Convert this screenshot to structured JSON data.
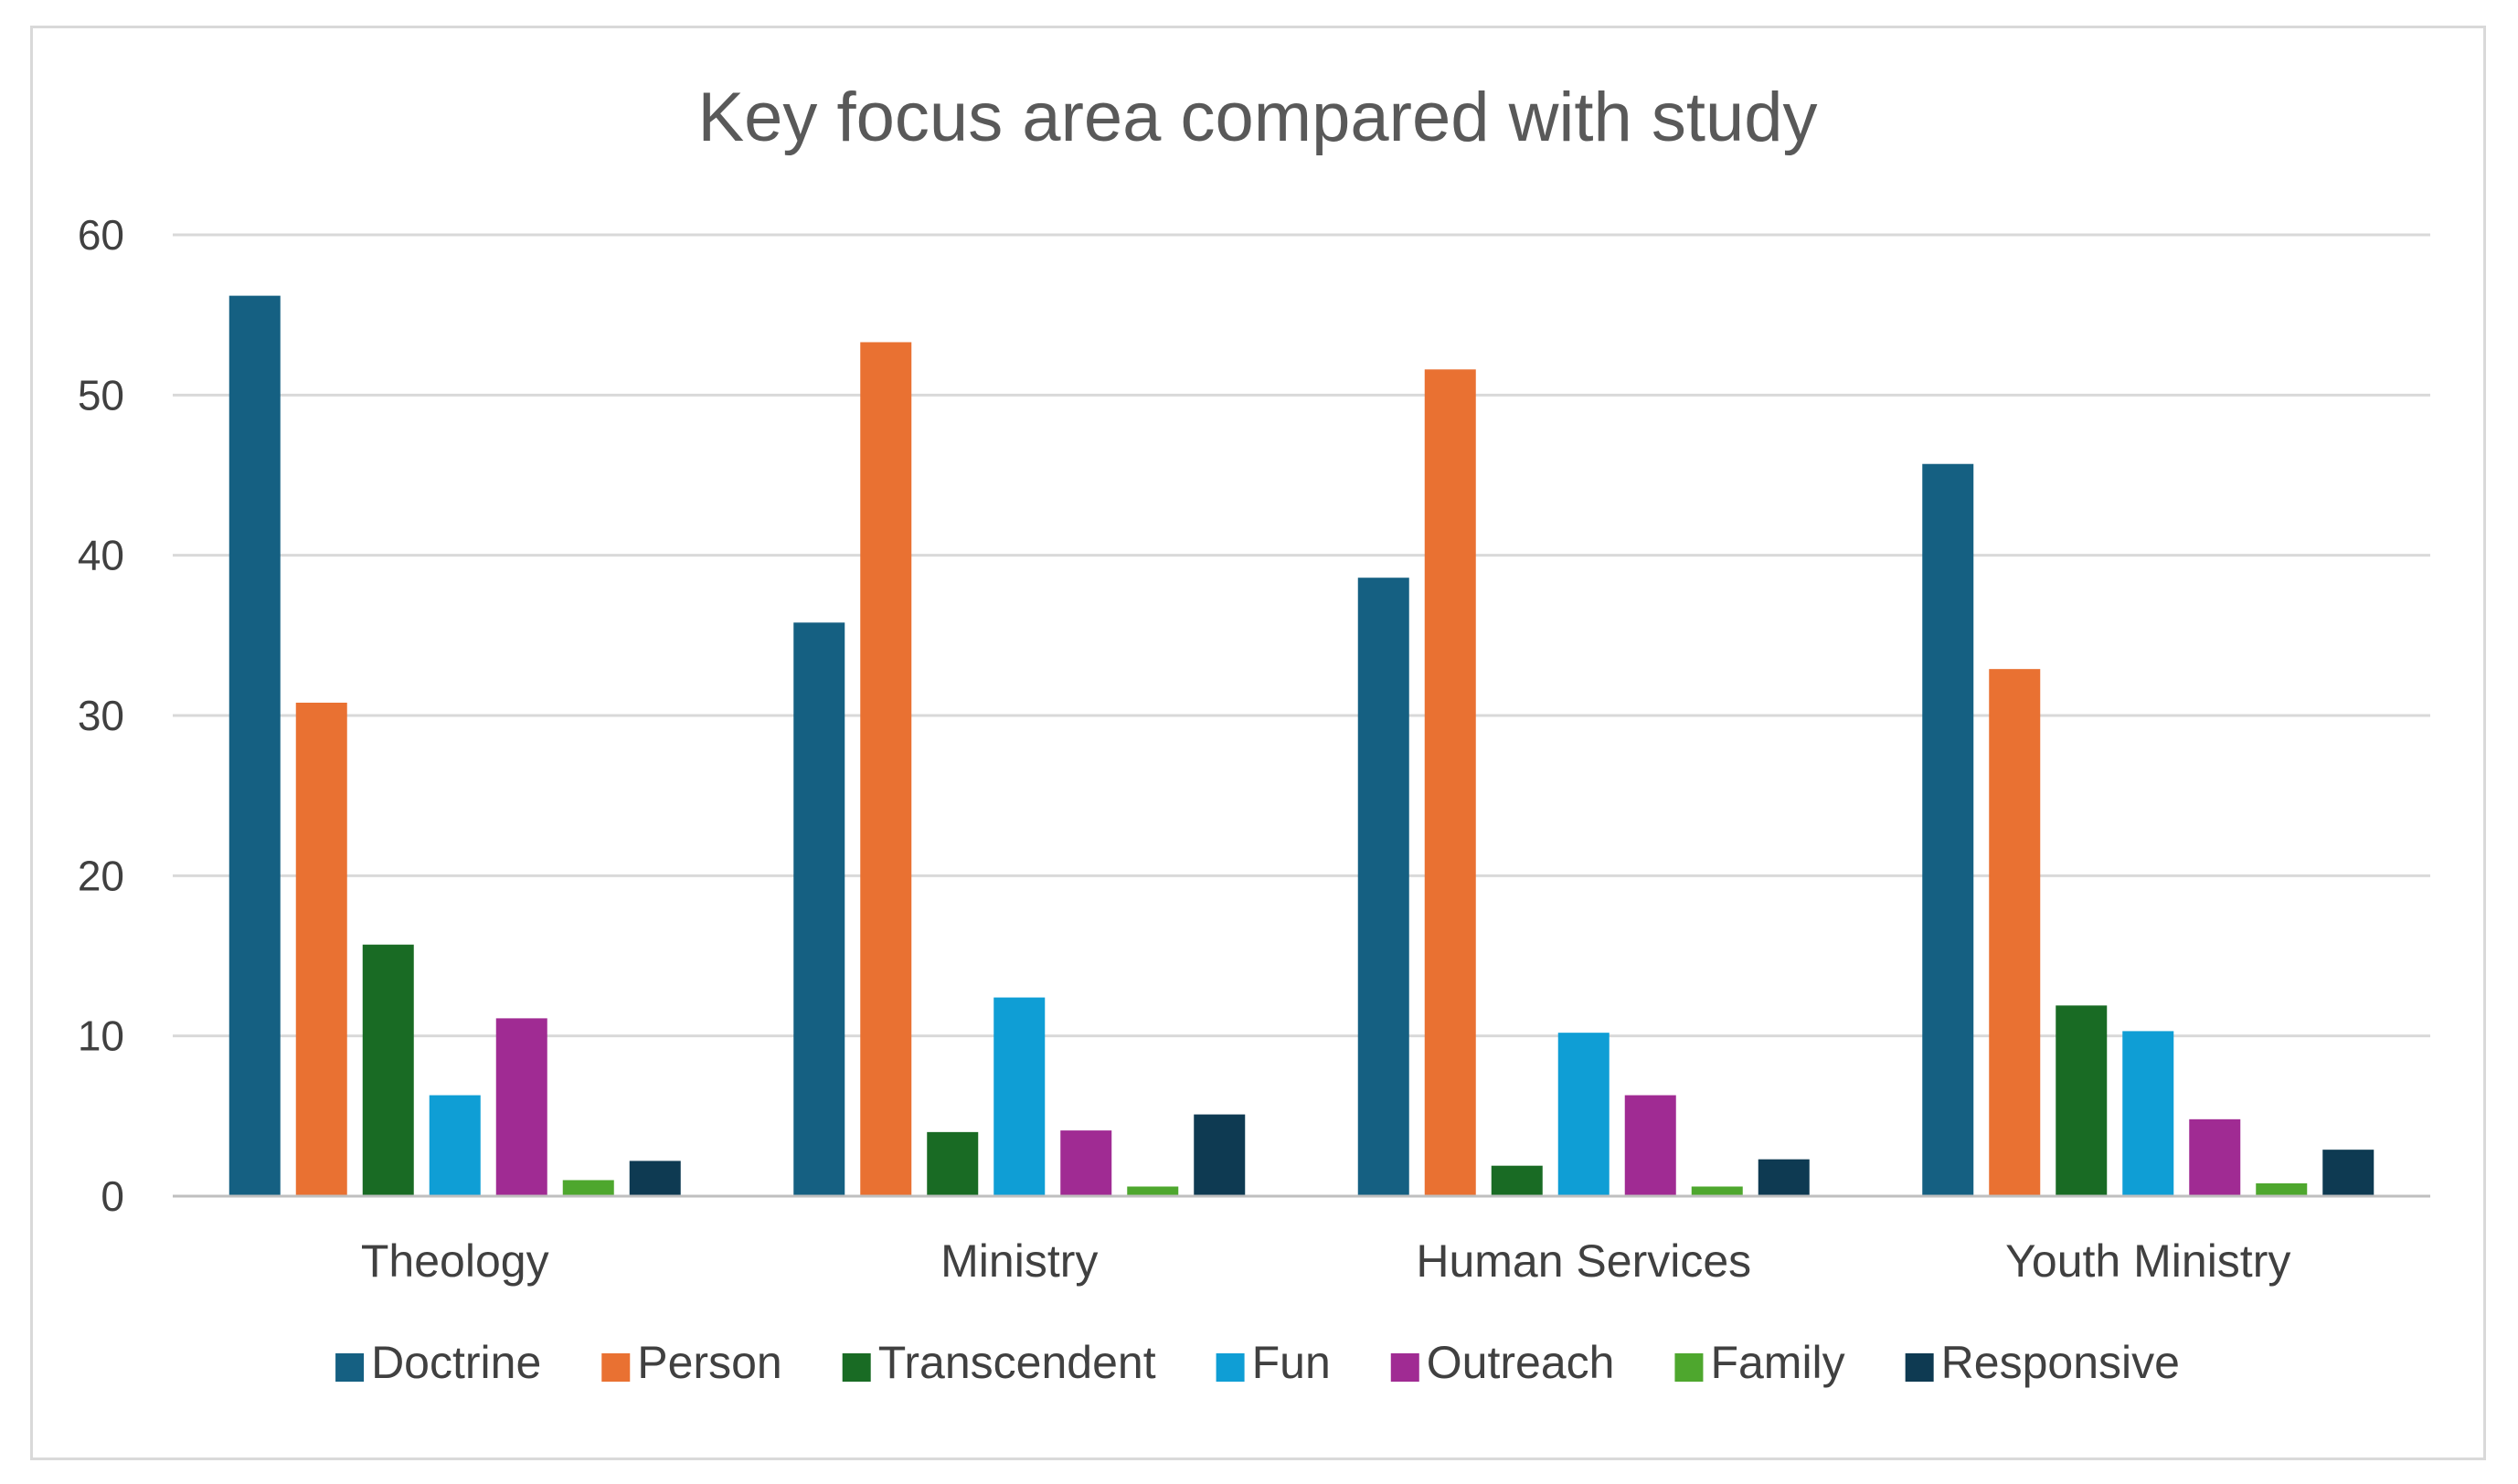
{
  "chart_data": {
    "type": "bar",
    "title": "Key focus area compared with study",
    "xlabel": "",
    "ylabel": "",
    "ylim": [
      0,
      60
    ],
    "yticks": [
      "0",
      "10",
      "20",
      "30",
      "40",
      "50",
      "60"
    ],
    "grid": true,
    "legend_position": "bottom",
    "categories": [
      "Theology",
      "Ministry",
      "Human Services",
      "Youth Ministry"
    ],
    "series": [
      {
        "name": "Doctrine",
        "color": "#156082",
        "values": [
          56.2,
          35.8,
          38.6,
          45.7
        ]
      },
      {
        "name": "Person",
        "color": "#E97132",
        "values": [
          30.8,
          53.3,
          51.6,
          32.9
        ]
      },
      {
        "name": "Transcendent",
        "color": "#196B24",
        "values": [
          15.7,
          4.0,
          1.9,
          11.9
        ]
      },
      {
        "name": "Fun",
        "color": "#0F9ED5",
        "values": [
          6.3,
          12.4,
          10.2,
          10.3
        ]
      },
      {
        "name": "Outreach",
        "color": "#A02B93",
        "values": [
          11.1,
          4.1,
          6.3,
          4.8
        ]
      },
      {
        "name": "Family",
        "color": "#4EA72E",
        "values": [
          1.0,
          0.6,
          0.6,
          0.8
        ]
      },
      {
        "name": "Responsive",
        "color": "#0E3A52",
        "values": [
          2.2,
          5.1,
          2.3,
          2.9
        ]
      }
    ]
  },
  "colors": {
    "gridline": "#d9d9d9",
    "axis": "#bfbfbf",
    "frame_border": "#d9d9d9"
  }
}
